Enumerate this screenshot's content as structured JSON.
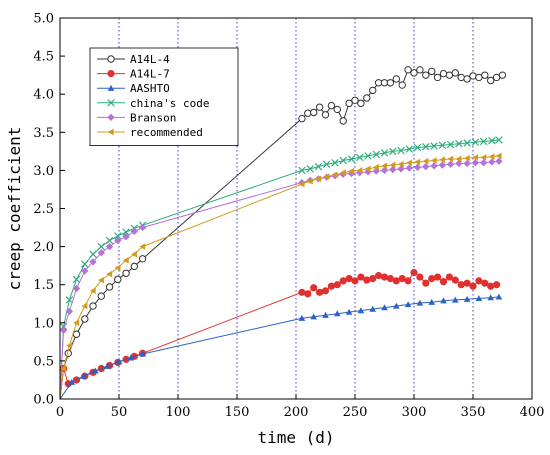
{
  "chart_data": {
    "type": "line",
    "xlabel": "time (d)",
    "ylabel": "creep coefficient",
    "xlim": [
      0,
      400
    ],
    "ylim": [
      0,
      5.0
    ],
    "xticks": [
      "0",
      "50",
      "100",
      "150",
      "200",
      "250",
      "300",
      "350",
      "400"
    ],
    "yticks": [
      "0.0",
      "0.5",
      "1.0",
      "1.5",
      "2.0",
      "2.5",
      "3.0",
      "3.5",
      "4.0",
      "4.5",
      "5.0"
    ],
    "grid": "vertical dotted lines at x = 50, 100, 150, 200, 250, 300, 350",
    "legend_position": "top-left",
    "series": [
      {
        "name": "A14L-4",
        "color": "#333333",
        "marker": "open-circle",
        "points": [
          [
            0,
            0
          ],
          [
            3,
            0.4
          ],
          [
            7,
            0.6
          ],
          [
            14,
            0.85
          ],
          [
            21,
            1.05
          ],
          [
            28,
            1.22
          ],
          [
            35,
            1.35
          ],
          [
            42,
            1.47
          ],
          [
            49,
            1.57
          ],
          [
            56,
            1.65
          ],
          [
            63,
            1.74
          ],
          [
            70,
            1.84
          ],
          [
            205,
            3.68
          ],
          [
            210,
            3.75
          ],
          [
            215,
            3.76
          ],
          [
            220,
            3.83
          ],
          [
            225,
            3.73
          ],
          [
            230,
            3.85
          ],
          [
            235,
            3.8
          ],
          [
            240,
            3.65
          ],
          [
            245,
            3.88
          ],
          [
            250,
            3.92
          ],
          [
            255,
            3.88
          ],
          [
            260,
            3.95
          ],
          [
            265,
            4.05
          ],
          [
            270,
            4.15
          ],
          [
            275,
            4.15
          ],
          [
            280,
            4.15
          ],
          [
            285,
            4.2
          ],
          [
            290,
            4.12
          ],
          [
            295,
            4.32
          ],
          [
            300,
            4.28
          ],
          [
            305,
            4.32
          ],
          [
            310,
            4.25
          ],
          [
            315,
            4.3
          ],
          [
            320,
            4.22
          ],
          [
            325,
            4.27
          ],
          [
            330,
            4.25
          ],
          [
            335,
            4.28
          ],
          [
            340,
            4.22
          ],
          [
            345,
            4.2
          ],
          [
            350,
            4.24
          ],
          [
            355,
            4.22
          ],
          [
            360,
            4.25
          ],
          [
            365,
            4.18
          ],
          [
            370,
            4.22
          ],
          [
            375,
            4.25
          ]
        ]
      },
      {
        "name": "A14L-7",
        "color": "#e03030",
        "marker": "filled-circle",
        "points": [
          [
            0,
            0
          ],
          [
            3,
            0.4
          ],
          [
            7,
            0.2
          ],
          [
            14,
            0.25
          ],
          [
            21,
            0.3
          ],
          [
            28,
            0.35
          ],
          [
            35,
            0.4
          ],
          [
            42,
            0.44
          ],
          [
            49,
            0.48
          ],
          [
            56,
            0.52
          ],
          [
            63,
            0.56
          ],
          [
            70,
            0.6
          ],
          [
            205,
            1.4
          ],
          [
            210,
            1.38
          ],
          [
            215,
            1.46
          ],
          [
            220,
            1.4
          ],
          [
            225,
            1.42
          ],
          [
            230,
            1.48
          ],
          [
            235,
            1.5
          ],
          [
            240,
            1.55
          ],
          [
            245,
            1.58
          ],
          [
            250,
            1.55
          ],
          [
            255,
            1.6
          ],
          [
            260,
            1.56
          ],
          [
            265,
            1.58
          ],
          [
            270,
            1.62
          ],
          [
            275,
            1.6
          ],
          [
            280,
            1.58
          ],
          [
            285,
            1.55
          ],
          [
            290,
            1.58
          ],
          [
            295,
            1.55
          ],
          [
            300,
            1.66
          ],
          [
            305,
            1.6
          ],
          [
            310,
            1.52
          ],
          [
            315,
            1.58
          ],
          [
            320,
            1.6
          ],
          [
            325,
            1.54
          ],
          [
            330,
            1.6
          ],
          [
            335,
            1.56
          ],
          [
            340,
            1.5
          ],
          [
            345,
            1.52
          ],
          [
            350,
            1.48
          ],
          [
            355,
            1.55
          ],
          [
            360,
            1.52
          ],
          [
            365,
            1.48
          ],
          [
            370,
            1.5
          ]
        ]
      },
      {
        "name": "AASHTO",
        "color": "#2a62c8",
        "marker": "filled-triangle",
        "points": [
          [
            0,
            0
          ],
          [
            10,
            0.22
          ],
          [
            20,
            0.3
          ],
          [
            30,
            0.37
          ],
          [
            40,
            0.43
          ],
          [
            50,
            0.49
          ],
          [
            60,
            0.54
          ],
          [
            70,
            0.59
          ],
          [
            205,
            1.06
          ],
          [
            215,
            1.08
          ],
          [
            225,
            1.1
          ],
          [
            235,
            1.12
          ],
          [
            245,
            1.14
          ],
          [
            255,
            1.16
          ],
          [
            265,
            1.18
          ],
          [
            275,
            1.2
          ],
          [
            285,
            1.22
          ],
          [
            295,
            1.24
          ],
          [
            305,
            1.26
          ],
          [
            315,
            1.27
          ],
          [
            325,
            1.29
          ],
          [
            335,
            1.3
          ],
          [
            345,
            1.31
          ],
          [
            355,
            1.32
          ],
          [
            365,
            1.33
          ],
          [
            372,
            1.34
          ]
        ]
      },
      {
        "name": "china's code",
        "color": "#2cae7a",
        "marker": "cross",
        "points": [
          [
            0,
            0
          ],
          [
            3,
            0.95
          ],
          [
            8,
            1.3
          ],
          [
            14,
            1.57
          ],
          [
            21,
            1.77
          ],
          [
            28,
            1.9
          ],
          [
            35,
            2.0
          ],
          [
            42,
            2.08
          ],
          [
            49,
            2.14
          ],
          [
            56,
            2.19
          ],
          [
            63,
            2.24
          ],
          [
            70,
            2.28
          ],
          [
            205,
            3.0
          ],
          [
            212,
            3.02
          ],
          [
            219,
            3.05
          ],
          [
            226,
            3.08
          ],
          [
            233,
            3.1
          ],
          [
            240,
            3.13
          ],
          [
            247,
            3.15
          ],
          [
            254,
            3.17
          ],
          [
            261,
            3.19
          ],
          [
            268,
            3.21
          ],
          [
            275,
            3.23
          ],
          [
            282,
            3.25
          ],
          [
            289,
            3.26
          ],
          [
            296,
            3.28
          ],
          [
            303,
            3.3
          ],
          [
            310,
            3.31
          ],
          [
            317,
            3.32
          ],
          [
            324,
            3.33
          ],
          [
            331,
            3.34
          ],
          [
            338,
            3.35
          ],
          [
            345,
            3.36
          ],
          [
            352,
            3.37
          ],
          [
            359,
            3.38
          ],
          [
            366,
            3.39
          ],
          [
            372,
            3.4
          ]
        ]
      },
      {
        "name": "Branson",
        "color": "#b572d8",
        "marker": "diamond",
        "points": [
          [
            0,
            0
          ],
          [
            3,
            0.9
          ],
          [
            8,
            1.15
          ],
          [
            14,
            1.45
          ],
          [
            21,
            1.68
          ],
          [
            28,
            1.8
          ],
          [
            35,
            1.92
          ],
          [
            42,
            2.0
          ],
          [
            49,
            2.08
          ],
          [
            56,
            2.13
          ],
          [
            63,
            2.2
          ],
          [
            70,
            2.25
          ],
          [
            205,
            2.84
          ],
          [
            212,
            2.87
          ],
          [
            219,
            2.89
          ],
          [
            226,
            2.91
          ],
          [
            233,
            2.93
          ],
          [
            240,
            2.95
          ],
          [
            247,
            2.96
          ],
          [
            254,
            2.97
          ],
          [
            261,
            2.98
          ],
          [
            268,
            2.99
          ],
          [
            275,
            3.0
          ],
          [
            282,
            3.01
          ],
          [
            289,
            3.02
          ],
          [
            296,
            3.03
          ],
          [
            303,
            3.04
          ],
          [
            310,
            3.05
          ],
          [
            317,
            3.06
          ],
          [
            324,
            3.07
          ],
          [
            331,
            3.08
          ],
          [
            338,
            3.09
          ],
          [
            345,
            3.09
          ],
          [
            352,
            3.1
          ],
          [
            359,
            3.1
          ],
          [
            366,
            3.11
          ],
          [
            372,
            3.12
          ]
        ]
      },
      {
        "name": "recommended",
        "color": "#d49a1e",
        "marker": "left-triangle",
        "points": [
          [
            0,
            0
          ],
          [
            3,
            0.4
          ],
          [
            8,
            0.7
          ],
          [
            14,
            1.0
          ],
          [
            21,
            1.22
          ],
          [
            28,
            1.42
          ],
          [
            35,
            1.56
          ],
          [
            42,
            1.64
          ],
          [
            49,
            1.72
          ],
          [
            56,
            1.82
          ],
          [
            63,
            1.9
          ],
          [
            70,
            2.0
          ],
          [
            205,
            2.82
          ],
          [
            212,
            2.86
          ],
          [
            219,
            2.89
          ],
          [
            226,
            2.92
          ],
          [
            233,
            2.94
          ],
          [
            240,
            2.97
          ],
          [
            247,
            2.99
          ],
          [
            254,
            3.0
          ],
          [
            261,
            3.02
          ],
          [
            268,
            3.04
          ],
          [
            275,
            3.06
          ],
          [
            282,
            3.07
          ],
          [
            289,
            3.08
          ],
          [
            296,
            3.1
          ],
          [
            303,
            3.11
          ],
          [
            310,
            3.12
          ],
          [
            317,
            3.13
          ],
          [
            324,
            3.14
          ],
          [
            331,
            3.15
          ],
          [
            338,
            3.15
          ],
          [
            345,
            3.16
          ],
          [
            352,
            3.17
          ],
          [
            359,
            3.17
          ],
          [
            366,
            3.18
          ],
          [
            372,
            3.19
          ]
        ]
      }
    ]
  }
}
